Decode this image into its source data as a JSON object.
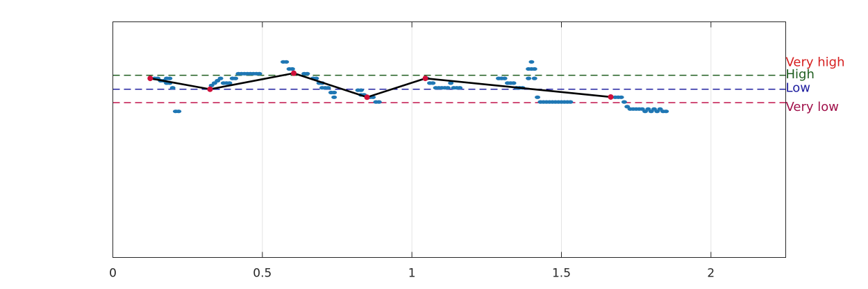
{
  "chart_data": {
    "type": "scatter",
    "title": "",
    "xlabel": "",
    "ylabel": "",
    "xlim": [
      0,
      2.25
    ],
    "ylim": [
      0,
      1.0
    ],
    "grid": "x-only",
    "x_ticks": [
      0,
      0.5,
      1,
      1.5,
      2
    ],
    "x_tick_labels": [
      "0",
      "0.5",
      "1",
      "1.5",
      "2"
    ],
    "reference_lines": [
      {
        "label": "Very high",
        "y": 0.773,
        "line_color": "#1e5c1e",
        "text_color": "#d62020"
      },
      {
        "label": "High",
        "y": 0.773,
        "line_color": "#1e5c1e",
        "text_color": "#1e5c1e"
      },
      {
        "label": "Low",
        "y": 0.714,
        "line_color": "#2020a0",
        "text_color": "#2020a0"
      },
      {
        "label": "Very low",
        "y": 0.657,
        "line_color": "#c0104a",
        "text_color": "#a0104a"
      }
    ],
    "series": [
      {
        "kind": "scatter",
        "color": "#1f77b4",
        "points": [
          [
            0.14,
            0.76
          ],
          [
            0.15,
            0.76
          ],
          [
            0.16,
            0.75
          ],
          [
            0.17,
            0.75
          ],
          [
            0.18,
            0.74
          ],
          [
            0.19,
            0.74
          ],
          [
            0.18,
            0.76
          ],
          [
            0.19,
            0.76
          ],
          [
            0.2,
            0.72
          ],
          [
            0.21,
            0.62
          ],
          [
            0.22,
            0.62
          ],
          [
            0.33,
            0.73
          ],
          [
            0.34,
            0.74
          ],
          [
            0.35,
            0.75
          ],
          [
            0.36,
            0.76
          ],
          [
            0.37,
            0.74
          ],
          [
            0.38,
            0.74
          ],
          [
            0.39,
            0.74
          ],
          [
            0.4,
            0.76
          ],
          [
            0.41,
            0.76
          ],
          [
            0.42,
            0.78
          ],
          [
            0.43,
            0.78
          ],
          [
            0.44,
            0.78
          ],
          [
            0.45,
            0.78
          ],
          [
            0.46,
            0.78
          ],
          [
            0.47,
            0.78
          ],
          [
            0.48,
            0.78
          ],
          [
            0.49,
            0.78
          ],
          [
            0.57,
            0.83
          ],
          [
            0.58,
            0.83
          ],
          [
            0.59,
            0.8
          ],
          [
            0.6,
            0.8
          ],
          [
            0.64,
            0.78
          ],
          [
            0.65,
            0.78
          ],
          [
            0.67,
            0.76
          ],
          [
            0.68,
            0.76
          ],
          [
            0.69,
            0.74
          ],
          [
            0.7,
            0.74
          ],
          [
            0.7,
            0.72
          ],
          [
            0.71,
            0.72
          ],
          [
            0.72,
            0.72
          ],
          [
            0.73,
            0.7
          ],
          [
            0.74,
            0.7
          ],
          [
            0.74,
            0.68
          ],
          [
            0.82,
            0.71
          ],
          [
            0.83,
            0.71
          ],
          [
            0.83,
            0.69
          ],
          [
            0.84,
            0.69
          ],
          [
            0.85,
            0.68
          ],
          [
            0.86,
            0.68
          ],
          [
            0.87,
            0.68
          ],
          [
            0.88,
            0.66
          ],
          [
            0.89,
            0.66
          ],
          [
            1.05,
            0.76
          ],
          [
            1.06,
            0.74
          ],
          [
            1.07,
            0.74
          ],
          [
            1.08,
            0.72
          ],
          [
            1.09,
            0.72
          ],
          [
            1.1,
            0.72
          ],
          [
            1.11,
            0.72
          ],
          [
            1.12,
            0.72
          ],
          [
            1.13,
            0.74
          ],
          [
            1.14,
            0.72
          ],
          [
            1.15,
            0.72
          ],
          [
            1.16,
            0.72
          ],
          [
            1.29,
            0.76
          ],
          [
            1.3,
            0.76
          ],
          [
            1.31,
            0.76
          ],
          [
            1.32,
            0.74
          ],
          [
            1.33,
            0.74
          ],
          [
            1.34,
            0.74
          ],
          [
            1.35,
            0.72
          ],
          [
            1.36,
            0.72
          ],
          [
            1.37,
            0.72
          ],
          [
            1.39,
            0.76
          ],
          [
            1.39,
            0.8
          ],
          [
            1.4,
            0.8
          ],
          [
            1.4,
            0.83
          ],
          [
            1.41,
            0.76
          ],
          [
            1.41,
            0.8
          ],
          [
            1.42,
            0.68
          ],
          [
            1.43,
            0.66
          ],
          [
            1.44,
            0.66
          ],
          [
            1.45,
            0.66
          ],
          [
            1.46,
            0.66
          ],
          [
            1.47,
            0.66
          ],
          [
            1.48,
            0.66
          ],
          [
            1.49,
            0.66
          ],
          [
            1.5,
            0.66
          ],
          [
            1.51,
            0.66
          ],
          [
            1.52,
            0.66
          ],
          [
            1.53,
            0.66
          ],
          [
            1.68,
            0.68
          ],
          [
            1.69,
            0.68
          ],
          [
            1.7,
            0.68
          ],
          [
            1.71,
            0.66
          ],
          [
            1.72,
            0.64
          ],
          [
            1.73,
            0.63
          ],
          [
            1.74,
            0.63
          ],
          [
            1.75,
            0.63
          ],
          [
            1.76,
            0.63
          ],
          [
            1.77,
            0.63
          ],
          [
            1.78,
            0.62
          ],
          [
            1.79,
            0.63
          ],
          [
            1.8,
            0.62
          ],
          [
            1.81,
            0.63
          ],
          [
            1.82,
            0.62
          ],
          [
            1.83,
            0.63
          ],
          [
            1.84,
            0.62
          ],
          [
            1.85,
            0.62
          ]
        ]
      },
      {
        "kind": "line",
        "color": "#000000",
        "marker_color": "#d0103a",
        "points": [
          [
            0.125,
            0.76
          ],
          [
            0.325,
            0.714
          ],
          [
            0.605,
            0.782
          ],
          [
            0.85,
            0.68
          ],
          [
            1.045,
            0.76
          ],
          [
            1.665,
            0.681
          ]
        ]
      }
    ]
  }
}
